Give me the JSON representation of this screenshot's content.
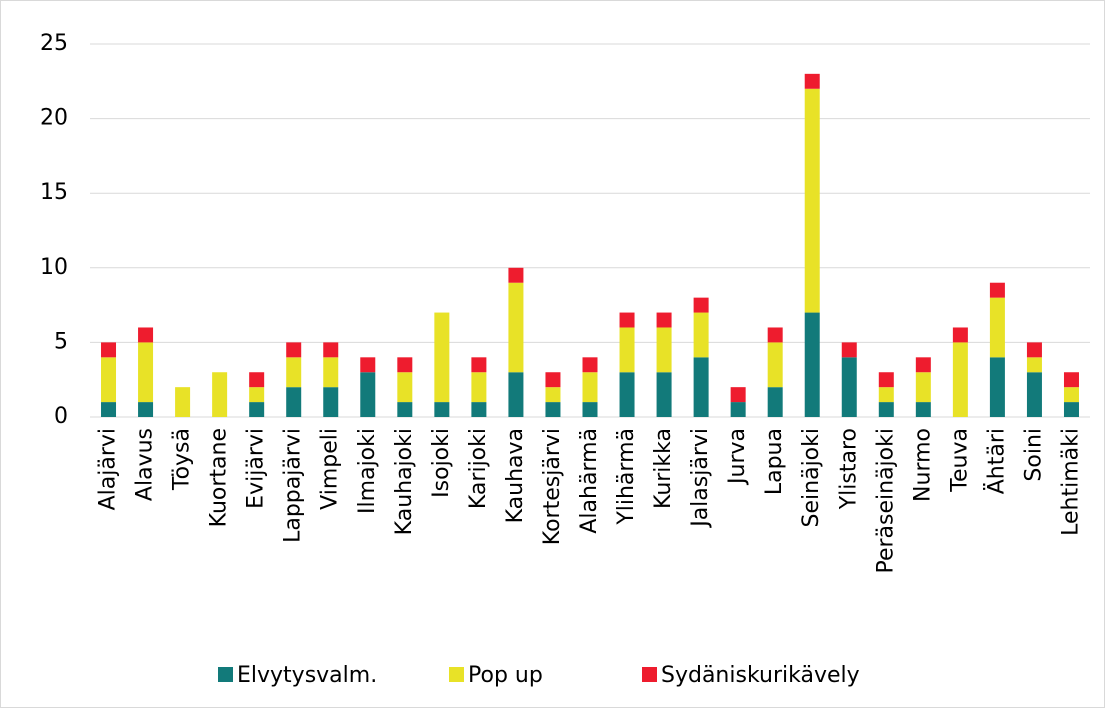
{
  "chart_data": {
    "type": "bar",
    "stacked": true,
    "categories": [
      "Alajärvi",
      "Alavus",
      "Töysä",
      "Kuortane",
      "Evijärvi",
      "Lappajärvi",
      "Vimpeli",
      "Ilmajoki",
      "Kauhajoki",
      "Isojoki",
      "Karijoki",
      "Kauhava",
      "Kortesjärvi",
      "Alahärmä",
      "Ylihärmä",
      "Kurikka",
      "Jalasjärvi",
      "Jurva",
      "Lapua",
      "Seinäjoki",
      "Ylistaro",
      "Peräseinäjoki",
      "Nurmo",
      "Teuva",
      "Ähtäri",
      "Soini",
      "Lehtimäki"
    ],
    "series": [
      {
        "name": "Elvytysvalm.",
        "color": "#127a7a",
        "values": [
          1,
          1,
          0,
          0,
          1,
          2,
          2,
          3,
          1,
          1,
          1,
          3,
          1,
          1,
          3,
          3,
          4,
          1,
          2,
          7,
          4,
          1,
          1,
          0,
          4,
          3,
          1
        ]
      },
      {
        "name": "Pop up",
        "color": "#e8e227",
        "values": [
          3,
          4,
          2,
          3,
          1,
          2,
          2,
          0,
          2,
          6,
          2,
          6,
          1,
          2,
          3,
          3,
          3,
          0,
          3,
          15,
          0,
          1,
          2,
          5,
          4,
          1,
          1
        ]
      },
      {
        "name": "Sydäniskurikävely",
        "color": "#ee1c2e",
        "values": [
          1,
          1,
          0,
          0,
          1,
          1,
          1,
          1,
          1,
          0,
          1,
          1,
          1,
          1,
          1,
          1,
          1,
          1,
          1,
          1,
          1,
          1,
          1,
          1,
          1,
          1,
          1
        ]
      }
    ],
    "ylim": [
      0,
      25
    ],
    "yticks": [
      0,
      5,
      10,
      15,
      20,
      25
    ],
    "grid": true,
    "legend": "bottom"
  }
}
